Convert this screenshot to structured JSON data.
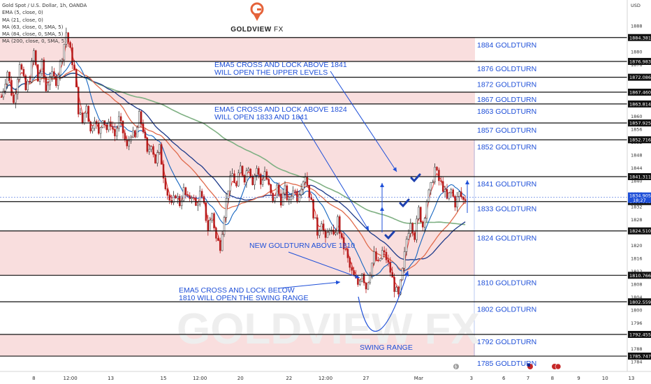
{
  "legend": {
    "symbol": "Gold Spot / U.S. Dollar, 1h, OANDA",
    "indicators": [
      "EMA (5, close, 0)",
      "MA (21, close, 0)",
      "MA (63, close, 0, SMA, 5)",
      "MA (84, close, 0, SMA, 5)",
      "MA (200, close, 0, SMA, 5)"
    ]
  },
  "brand": {
    "logo_text": "GOLDVIEW",
    "logo_text_suffix": "FX",
    "watermark": "GOLDVIEW FX"
  },
  "axis": {
    "currency": "USD",
    "countdown": "18:27"
  },
  "colors": {
    "label_blue": "#1e4fd8",
    "zone_pink": "#f9dede",
    "ema5": "#e53935",
    "ma21": "#1565c0",
    "ma63": "#e06a4c",
    "ma84": "#1e3a8a",
    "ma200": "#7fb083",
    "candle_up": "#333333",
    "candle_down": "#b71c1c"
  },
  "chart_data": {
    "type": "candlestick",
    "price_range": [
      1781,
      1896
    ],
    "y_ticks": [
      1888,
      1884,
      1880,
      1876,
      1872,
      1868,
      1864,
      1860,
      1856,
      1852,
      1848,
      1844,
      1840,
      1836,
      1832,
      1828,
      1824,
      1820,
      1816,
      1812,
      1808,
      1804,
      1800,
      1796,
      1792,
      1788,
      1784
    ],
    "x_ticks": [
      {
        "label": "8",
        "bar": 16
      },
      {
        "label": "12:00",
        "bar": 34
      },
      {
        "label": "13",
        "bar": 54
      },
      {
        "label": "15",
        "bar": 80
      },
      {
        "label": "12:00",
        "bar": 98
      },
      {
        "label": "20",
        "bar": 118
      },
      {
        "label": "22",
        "bar": 142
      },
      {
        "label": "12:00",
        "bar": 160
      },
      {
        "label": "27",
        "bar": 180
      },
      {
        "label": "Mar",
        "bar": 206
      },
      {
        "label": "3",
        "bar": 232
      },
      {
        "label": "6",
        "bar": 248
      },
      {
        "label": "7",
        "bar": 260
      },
      {
        "label": "8",
        "bar": 272
      },
      {
        "label": "9",
        "bar": 285
      },
      {
        "label": "10",
        "bar": 298
      },
      {
        "label": "13",
        "bar": 311
      }
    ],
    "goldturns": [
      {
        "price": 1884.381,
        "label": "1884 GOLDTURN",
        "badge": "1884.381"
      },
      {
        "price": 1876.983,
        "label": "1876 GOLDTURN",
        "badge": "1876.983"
      },
      {
        "price": 1872.086,
        "label": "1872 GOLDTURN",
        "badge": "1872.086"
      },
      {
        "price": 1867.46,
        "label": "1867 GOLDTURN",
        "badge": "1867.460"
      },
      {
        "price": 1863.814,
        "label": "1863 GOLDTURN",
        "badge": "1863.814"
      },
      {
        "price": 1857.925,
        "label": "1857 GOLDTURN",
        "badge": "1857.925"
      },
      {
        "price": 1852.716,
        "label": "1852 GOLDTURN",
        "badge": "1852.716"
      },
      {
        "price": 1841.311,
        "label": "1841 GOLDTURN",
        "badge": "1841.311"
      },
      {
        "price": 1833.585,
        "label": "1833 GOLDTURN",
        "badge": "1833.585"
      },
      {
        "price": 1824.51,
        "label": "1824 GOLDTURN",
        "badge": "1824.510"
      },
      {
        "price": 1810.766,
        "label": "1810 GOLDTURN",
        "badge": "1810.766"
      },
      {
        "price": 1802.559,
        "label": "1802 GOLDTURN",
        "badge": "1802.559"
      },
      {
        "price": 1792.455,
        "label": "1792 GOLDTURN",
        "badge": "1792.455"
      },
      {
        "price": 1785.747,
        "label": "1785 GOLDTURN",
        "badge": "1785.747"
      }
    ],
    "zones": [
      {
        "from": 1876.983,
        "to": 1884.381
      },
      {
        "from": 1863.814,
        "to": 1867.46
      },
      {
        "from": 1841.311,
        "to": 1852.716
      },
      {
        "from": 1810.766,
        "to": 1824.51
      },
      {
        "from": 1785.747,
        "to": 1792.455
      }
    ],
    "last_price": {
      "value": "1834.905",
      "price": 1834.905
    },
    "annotations": [
      {
        "lines": [
          "EMA5 CROSS AND LOCK ABOVE 1841",
          "WILL OPEN THE UPPER LEVELS"
        ]
      },
      {
        "lines": [
          "EMA5 CROSS AND LOCK ABOVE 1824",
          "WILL OPEN 1833 AND 1841"
        ]
      },
      {
        "lines": [
          "NEW GOLDTURN ABOVE 1810"
        ]
      },
      {
        "lines": [
          "EMA5 CROSS AND LOCK BELOW",
          "1810 WILL OPEN THE SWING RANGE"
        ]
      },
      {
        "lines": [
          "SWING RANGE"
        ]
      }
    ],
    "price_path": [
      [
        0,
        1866
      ],
      [
        3,
        1874
      ],
      [
        6,
        1864
      ],
      [
        9,
        1877
      ],
      [
        12,
        1868
      ],
      [
        14,
        1872
      ],
      [
        16,
        1880
      ],
      [
        18,
        1871
      ],
      [
        20,
        1876
      ],
      [
        22,
        1868
      ],
      [
        24,
        1873
      ],
      [
        27,
        1871
      ],
      [
        30,
        1879
      ],
      [
        32,
        1886
      ],
      [
        34,
        1880
      ],
      [
        36,
        1874
      ],
      [
        38,
        1862
      ],
      [
        40,
        1858
      ],
      [
        42,
        1864
      ],
      [
        44,
        1855
      ],
      [
        46,
        1860
      ],
      [
        48,
        1854
      ],
      [
        50,
        1860
      ],
      [
        52,
        1856
      ],
      [
        54,
        1858
      ],
      [
        56,
        1854
      ],
      [
        58,
        1859
      ],
      [
        60,
        1855
      ],
      [
        62,
        1850
      ],
      [
        64,
        1855
      ],
      [
        66,
        1853
      ],
      [
        68,
        1860
      ],
      [
        70,
        1856
      ],
      [
        72,
        1848
      ],
      [
        74,
        1852
      ],
      [
        76,
        1846
      ],
      [
        78,
        1850
      ],
      [
        80,
        1842
      ],
      [
        82,
        1836
      ],
      [
        84,
        1832
      ],
      [
        86,
        1836
      ],
      [
        88,
        1833
      ],
      [
        90,
        1837
      ],
      [
        92,
        1834
      ],
      [
        94,
        1836
      ],
      [
        96,
        1832
      ],
      [
        98,
        1836
      ],
      [
        100,
        1832
      ],
      [
        102,
        1825
      ],
      [
        104,
        1830
      ],
      [
        106,
        1822
      ],
      [
        108,
        1820
      ],
      [
        110,
        1830
      ],
      [
        112,
        1838
      ],
      [
        114,
        1842
      ],
      [
        116,
        1838
      ],
      [
        118,
        1844
      ],
      [
        120,
        1841
      ],
      [
        122,
        1845
      ],
      [
        124,
        1840
      ],
      [
        126,
        1844
      ],
      [
        128,
        1839
      ],
      [
        130,
        1843
      ],
      [
        132,
        1838
      ],
      [
        134,
        1833
      ],
      [
        136,
        1838
      ],
      [
        138,
        1834
      ],
      [
        140,
        1837
      ],
      [
        142,
        1833
      ],
      [
        144,
        1838
      ],
      [
        146,
        1835
      ],
      [
        148,
        1839
      ],
      [
        150,
        1842
      ],
      [
        152,
        1836
      ],
      [
        154,
        1830
      ],
      [
        156,
        1824
      ],
      [
        158,
        1828
      ],
      [
        160,
        1821
      ],
      [
        162,
        1826
      ],
      [
        164,
        1822
      ],
      [
        166,
        1828
      ],
      [
        168,
        1821
      ],
      [
        170,
        1818
      ],
      [
        172,
        1813
      ],
      [
        174,
        1810
      ],
      [
        176,
        1808
      ],
      [
        178,
        1812
      ],
      [
        180,
        1807
      ],
      [
        182,
        1812
      ],
      [
        184,
        1817
      ],
      [
        186,
        1814
      ],
      [
        188,
        1818
      ],
      [
        190,
        1816
      ],
      [
        192,
        1812
      ],
      [
        194,
        1807
      ],
      [
        196,
        1804
      ],
      [
        198,
        1812
      ],
      [
        200,
        1822
      ],
      [
        202,
        1828
      ],
      [
        204,
        1823
      ],
      [
        206,
        1831
      ],
      [
        208,
        1826
      ],
      [
        210,
        1834
      ],
      [
        212,
        1838
      ],
      [
        214,
        1844
      ],
      [
        216,
        1840
      ],
      [
        218,
        1838
      ],
      [
        220,
        1834
      ],
      [
        222,
        1837
      ],
      [
        224,
        1833
      ],
      [
        226,
        1836
      ],
      [
        228,
        1834
      ],
      [
        230,
        1835
      ]
    ]
  }
}
